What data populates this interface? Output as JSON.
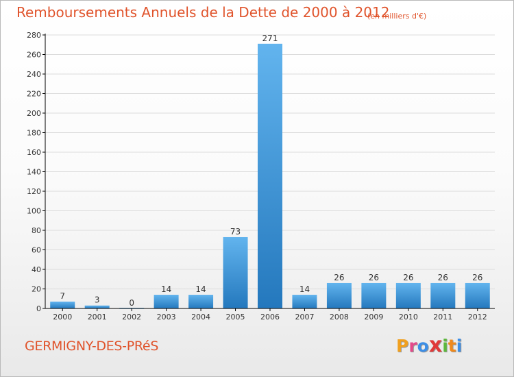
{
  "title": "Remboursements Annuels de la Dette de 2000 à 2012",
  "subtitle": "(en milliers d'€)",
  "commune": "GERMIGNY-DES-PRéS",
  "logo": {
    "text": "Proxiti",
    "letters": [
      "P",
      "r",
      "o",
      "x",
      "i",
      "t",
      "i"
    ],
    "colors": [
      "#f0a020",
      "#e34a8a",
      "#3d8ee6",
      "#e03a3a",
      "#5cb83c",
      "#f08a1e",
      "#3d8ee6"
    ]
  },
  "colors": {
    "accent": "#e0532b",
    "bar_top": "#62b4ee",
    "bar_bottom": "#2478bd",
    "grid": "#dcdcdc",
    "axis": "#000000"
  },
  "chart_data": {
    "type": "bar",
    "title": "Remboursements Annuels de la Dette de 2000 à 2012",
    "subtitle": "(en milliers d'€)",
    "xlabel": "",
    "ylabel": "",
    "categories": [
      "2000",
      "2001",
      "2002",
      "2003",
      "2004",
      "2005",
      "2006",
      "2007",
      "2008",
      "2009",
      "2010",
      "2011",
      "2012"
    ],
    "values": [
      7,
      3,
      0,
      14,
      14,
      73,
      271,
      14,
      26,
      26,
      26,
      26,
      26
    ],
    "data_labels": [
      "7",
      "3",
      "0",
      "14",
      "14",
      "73",
      "271",
      "14",
      "26",
      "26",
      "26",
      "26",
      "26"
    ],
    "ylim": [
      0,
      280
    ],
    "yticks": [
      0,
      20,
      40,
      60,
      80,
      100,
      120,
      140,
      160,
      180,
      200,
      220,
      240,
      260,
      280
    ],
    "grid": true,
    "legend": "none"
  }
}
